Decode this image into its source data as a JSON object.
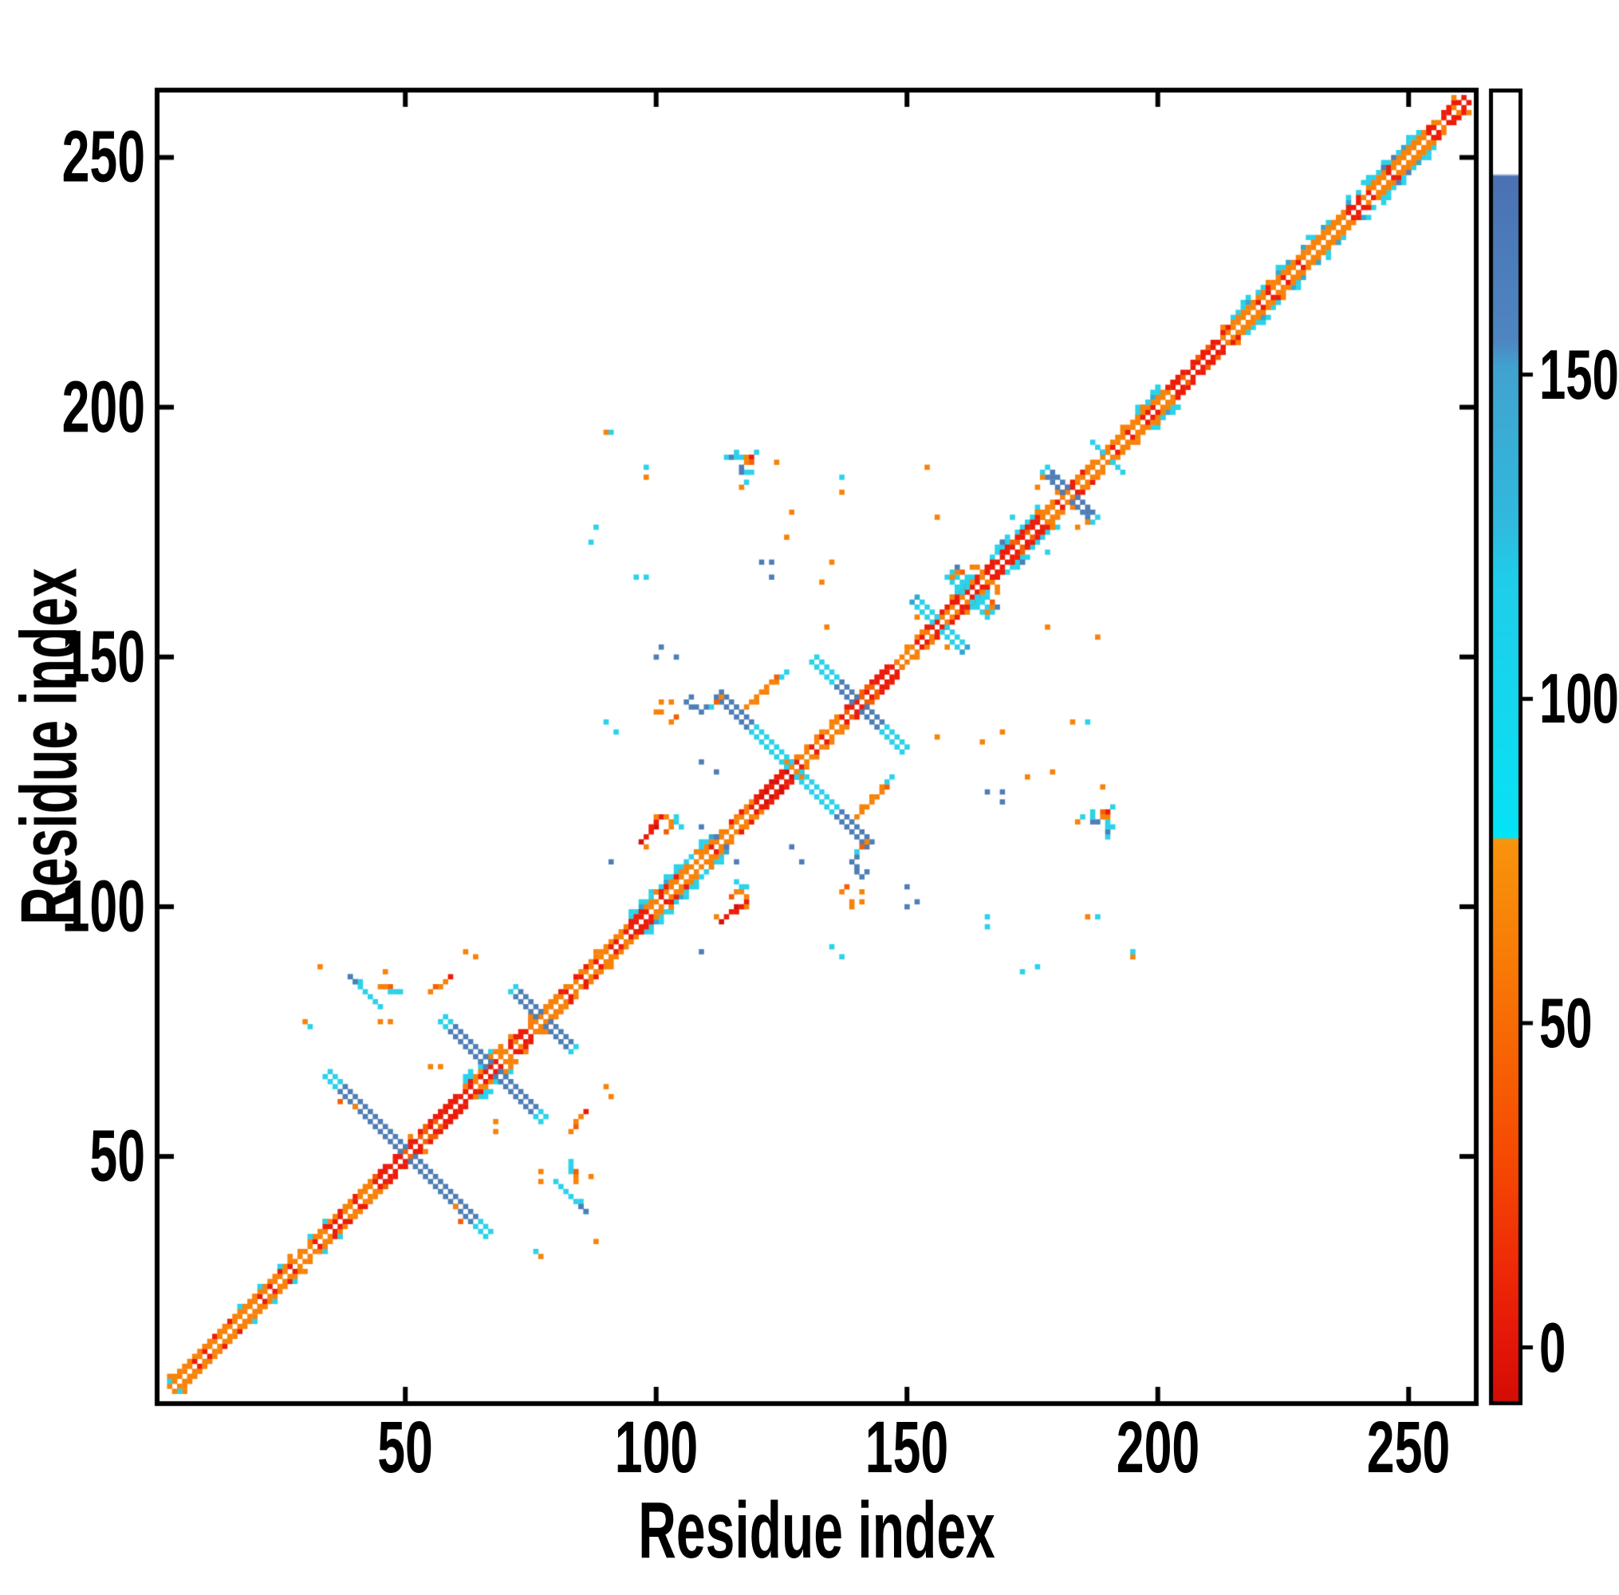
{
  "figure": {
    "background": "#ffffff",
    "axis_color": "#000000"
  },
  "chart_data": {
    "type": "heatmap",
    "title": "",
    "xlabel": "Residue index",
    "ylabel": "Residue index",
    "x_range": [
      1,
      263
    ],
    "y_range": [
      1,
      263
    ],
    "x_ticks": [
      50,
      100,
      150,
      200,
      250
    ],
    "y_ticks": [
      50,
      100,
      150,
      200,
      250
    ],
    "grid": false,
    "legend": "colorbar-right",
    "palette": {
      "red": "#ed1c09",
      "red2": "#d8100a",
      "orange": "#f8820a",
      "orange2": "#f45f03",
      "cyan": "#2bd2ea",
      "teal": "#31a8d2",
      "steel": "#4e7eb6",
      "white": "#ffffff"
    },
    "colorbar": {
      "ticks": [
        0,
        50,
        100,
        150
      ],
      "domain_top_value": 193.5,
      "domain_bottom_value": -8.3,
      "stops": [
        [
          0.0,
          "#ffffff"
        ],
        [
          0.062,
          "#ffffff"
        ],
        [
          0.064,
          "#4b72b3"
        ],
        [
          0.19,
          "#4e86c2"
        ],
        [
          0.21,
          "#41a3cf"
        ],
        [
          0.33,
          "#30bade"
        ],
        [
          0.37,
          "#20cdea"
        ],
        [
          0.55,
          "#0ae0f4"
        ],
        [
          0.569,
          "#00e6f8"
        ],
        [
          0.571,
          "#f9940c"
        ],
        [
          0.66,
          "#f87c06"
        ],
        [
          0.74,
          "#f76203"
        ],
        [
          0.82,
          "#f54802"
        ],
        [
          0.89,
          "#ef2d06"
        ],
        [
          0.95,
          "#e51808"
        ],
        [
          1.0,
          "#d30d05"
        ]
      ]
    },
    "diagonal_segments": [
      {
        "f": 3,
        "t": 20,
        "inner": "orange",
        "accent": "red",
        "rate": 0.22
      },
      {
        "f": 20,
        "t": 44,
        "inner": "orange",
        "accent": "red",
        "rate": 0.3
      },
      {
        "f": 44,
        "t": 62,
        "inner": "red",
        "accent": "orange2",
        "rate": 0.35
      },
      {
        "f": 62,
        "t": 75,
        "inner": "red",
        "accent": "orange",
        "rate": 0.3
      },
      {
        "f": 75,
        "t": 95,
        "inner": "orange",
        "accent": "red",
        "rate": 0.3
      },
      {
        "f": 95,
        "t": 112,
        "inner": "orange",
        "accent": "red",
        "rate": 0.35
      },
      {
        "f": 112,
        "t": 120,
        "inner": "orange",
        "accent": "red",
        "rate": 0.3
      },
      {
        "f": 120,
        "t": 127,
        "inner": "red",
        "accent": "red2",
        "rate": 0.4
      },
      {
        "f": 127,
        "t": 137,
        "inner": "orange",
        "accent": "red",
        "rate": 0.35
      },
      {
        "f": 137,
        "t": 148,
        "inner": "red",
        "accent": "orange2",
        "rate": 0.3
      },
      {
        "f": 148,
        "t": 154,
        "inner": "orange",
        "accent": "red",
        "rate": 0.3
      },
      {
        "f": 154,
        "t": 166,
        "inner": "red",
        "accent": "orange",
        "rate": 0.35
      },
      {
        "f": 166,
        "t": 177,
        "inner": "red",
        "accent": "orange2",
        "rate": 0.3
      },
      {
        "f": 177,
        "t": 196,
        "inner": "orange",
        "accent": "red",
        "rate": 0.3
      },
      {
        "f": 196,
        "t": 203,
        "inner": "orange",
        "accent": "red",
        "rate": 0.3
      },
      {
        "f": 203,
        "t": 213,
        "inner": "red",
        "accent": "orange2",
        "rate": 0.3
      },
      {
        "f": 213,
        "t": 226,
        "inner": "orange",
        "accent": "red",
        "rate": 0.25
      },
      {
        "f": 226,
        "t": 236,
        "inner": "orange",
        "accent": "red",
        "rate": 0.3
      },
      {
        "f": 236,
        "t": 254,
        "inner": "orange",
        "accent": "red",
        "rate": 0.25
      },
      {
        "f": 254,
        "t": 261,
        "inner": "red",
        "accent": "orange",
        "rate": 0.4
      }
    ],
    "cyan_flanks": [
      {
        "f": 62,
        "t": 67
      },
      {
        "f": 95,
        "t": 111
      },
      {
        "f": 155,
        "t": 163
      },
      {
        "f": 167,
        "t": 177
      },
      {
        "f": 196,
        "t": 200
      },
      {
        "f": 215,
        "t": 226
      },
      {
        "f": 229,
        "t": 234
      },
      {
        "f": 238,
        "t": 252
      }
    ],
    "anti_x": [
      {
        "c": 50,
        "len": 16,
        "w": 2,
        "color": "steel",
        "distal": "cyan",
        "distal_from": 14
      },
      {
        "c": 67,
        "len": 10,
        "w": 2,
        "color": "steel",
        "distal": "cyan",
        "distal_from": 9
      },
      {
        "c": 77,
        "len": 6,
        "w": 2,
        "color": "steel",
        "distal": "cyan",
        "distal_from": 6
      },
      {
        "c": 127,
        "len": 15,
        "w": 2,
        "color": "cyan",
        "distal": "steel",
        "distal_from": 9
      },
      {
        "c": 140,
        "len": 9,
        "w": 2,
        "color": "steel",
        "distal": "cyan",
        "distal_from": 5
      },
      {
        "c": 156,
        "len": 5,
        "w": 2,
        "color": "cyan",
        "distal": "teal",
        "distal_from": 5
      },
      {
        "c": 162,
        "len": 4,
        "w": 2,
        "color": "cyan",
        "distal": "cyan",
        "distal_from": 5
      },
      {
        "c": 182,
        "len": 5,
        "w": 2,
        "color": "steel",
        "distal": "cyan",
        "distal_from": 5
      },
      {
        "c": 190,
        "len": 3,
        "w": 1,
        "color": "cyan",
        "distal": "cyan",
        "distal_from": 4
      }
    ],
    "streaks": [
      {
        "i": 39,
        "j": 86,
        "len": 7,
        "color": "cyan"
      }
    ],
    "dots": [
      [
        3,
        5,
        "cyan"
      ],
      [
        17,
        20,
        "cyan"
      ],
      [
        21,
        24,
        "cyan"
      ],
      [
        25,
        28,
        "cyan"
      ],
      [
        31,
        34,
        "cyan"
      ],
      [
        34,
        37,
        "cyan"
      ],
      [
        40,
        60,
        "orange"
      ],
      [
        37,
        61,
        "orange2"
      ],
      [
        33,
        88,
        "orange"
      ],
      [
        39,
        86,
        "steel"
      ],
      [
        40,
        85,
        "steel"
      ],
      [
        57,
        84,
        "orange"
      ],
      [
        58,
        85,
        "orange"
      ],
      [
        59,
        86,
        "red"
      ],
      [
        56,
        84,
        "orange2"
      ],
      [
        55,
        83,
        "orange"
      ],
      [
        45,
        84,
        "orange"
      ],
      [
        46,
        84,
        "orange"
      ],
      [
        47,
        84,
        "orange2"
      ],
      [
        46,
        87,
        "orange"
      ],
      [
        47,
        83,
        "cyan"
      ],
      [
        48,
        83,
        "cyan"
      ],
      [
        49,
        83,
        "cyan"
      ],
      [
        47,
        77,
        "orange"
      ],
      [
        45,
        77,
        "orange"
      ],
      [
        31,
        76,
        "cyan"
      ],
      [
        30,
        77,
        "orange"
      ],
      [
        64,
        90,
        "orange"
      ],
      [
        62,
        91,
        "orange"
      ],
      [
        55,
        68,
        "orange"
      ],
      [
        57,
        68,
        "orange"
      ],
      [
        92,
        135,
        "cyan"
      ],
      [
        90,
        137,
        "cyan"
      ],
      [
        91,
        109,
        "steel"
      ],
      [
        98,
        114,
        "red"
      ],
      [
        99,
        115,
        "red"
      ],
      [
        99,
        116,
        "red"
      ],
      [
        100,
        116,
        "red2"
      ],
      [
        100,
        117,
        "red"
      ],
      [
        101,
        118,
        "red"
      ],
      [
        100,
        118,
        "orange"
      ],
      [
        102,
        118,
        "orange"
      ],
      [
        103,
        117,
        "orange"
      ],
      [
        103,
        116,
        "orange"
      ],
      [
        102,
        115,
        "orange2"
      ],
      [
        104,
        117,
        "cyan"
      ],
      [
        104,
        118,
        "cyan"
      ],
      [
        105,
        116,
        "cyan"
      ],
      [
        97,
        113,
        "red2"
      ],
      [
        98,
        112,
        "orange"
      ],
      [
        100,
        139,
        "orange"
      ],
      [
        101,
        139,
        "orange"
      ],
      [
        101,
        141,
        "orange"
      ],
      [
        103,
        141,
        "orange"
      ],
      [
        104,
        138,
        "orange2"
      ],
      [
        103,
        137,
        "orange"
      ],
      [
        106,
        141,
        "steel"
      ],
      [
        107,
        140,
        "steel"
      ],
      [
        108,
        140,
        "steel"
      ],
      [
        109,
        139,
        "steel"
      ],
      [
        110,
        140,
        "steel"
      ],
      [
        107,
        142,
        "steel"
      ],
      [
        118,
        140,
        "orange"
      ],
      [
        119,
        141,
        "orange"
      ],
      [
        120,
        141,
        "orange"
      ],
      [
        120,
        142,
        "orange"
      ],
      [
        121,
        143,
        "orange"
      ],
      [
        122,
        143,
        "orange"
      ],
      [
        122,
        144,
        "orange"
      ],
      [
        123,
        145,
        "orange"
      ],
      [
        124,
        145,
        "orange"
      ],
      [
        124,
        146,
        "orange2"
      ],
      [
        125,
        146,
        "cyan"
      ],
      [
        126,
        147,
        "cyan"
      ],
      [
        100,
        150,
        "steel"
      ],
      [
        101,
        152,
        "steel"
      ],
      [
        104,
        150,
        "steel"
      ],
      [
        109,
        116,
        "steel"
      ],
      [
        112,
        114,
        "steel"
      ],
      [
        109,
        129,
        "steel"
      ],
      [
        112,
        127,
        "steel"
      ],
      [
        113,
        142,
        "orange"
      ],
      [
        112,
        141,
        "orange2"
      ],
      [
        111,
        140,
        "cyan"
      ],
      [
        114,
        190,
        "cyan"
      ],
      [
        115,
        190,
        "steel"
      ],
      [
        116,
        190,
        "cyan"
      ],
      [
        117,
        190,
        "cyan"
      ],
      [
        118,
        190,
        "orange"
      ],
      [
        119,
        190,
        "red"
      ],
      [
        119,
        189,
        "orange2"
      ],
      [
        118,
        189,
        "orange"
      ],
      [
        117,
        188,
        "steel"
      ],
      [
        117,
        187,
        "steel"
      ],
      [
        118,
        187,
        "cyan"
      ],
      [
        119,
        187,
        "cyan"
      ],
      [
        118,
        185,
        "cyan"
      ],
      [
        117,
        184,
        "orange"
      ],
      [
        120,
        191,
        "cyan"
      ],
      [
        116,
        191,
        "cyan"
      ],
      [
        98,
        188,
        "cyan"
      ],
      [
        98,
        186,
        "orange"
      ],
      [
        137,
        186,
        "cyan"
      ],
      [
        137,
        183,
        "orange"
      ],
      [
        154,
        188,
        "orange"
      ],
      [
        124,
        189,
        "orange"
      ],
      [
        96,
        166,
        "cyan"
      ],
      [
        98,
        166,
        "cyan"
      ],
      [
        121,
        169,
        "steel"
      ],
      [
        123,
        169,
        "steel"
      ],
      [
        123,
        166,
        "steel"
      ],
      [
        135,
        169,
        "orange"
      ],
      [
        133,
        165,
        "orange"
      ],
      [
        134,
        156,
        "orange"
      ],
      [
        126,
        174,
        "orange"
      ],
      [
        127,
        179,
        "orange"
      ],
      [
        90,
        195,
        "orange"
      ],
      [
        91,
        195,
        "cyan"
      ],
      [
        88,
        176,
        "cyan"
      ],
      [
        87,
        173,
        "cyan"
      ],
      [
        152,
        158,
        "orange"
      ],
      [
        159,
        166,
        "orange"
      ],
      [
        160,
        167,
        "orange"
      ],
      [
        161,
        167,
        "orange2"
      ],
      [
        163,
        168,
        "orange"
      ],
      [
        164,
        168,
        "orange"
      ],
      [
        160,
        168,
        "steel"
      ],
      [
        156,
        178,
        "orange"
      ],
      [
        169,
        173,
        "steel"
      ],
      [
        171,
        178,
        "cyan"
      ],
      [
        176,
        184,
        "orange"
      ],
      [
        177,
        186,
        "orange"
      ],
      [
        179,
        186,
        "steel"
      ],
      [
        198,
        201,
        "cyan"
      ],
      [
        200,
        204,
        "cyan"
      ],
      [
        245,
        248,
        "steel"
      ],
      [
        247,
        250,
        "steel"
      ]
    ]
  }
}
